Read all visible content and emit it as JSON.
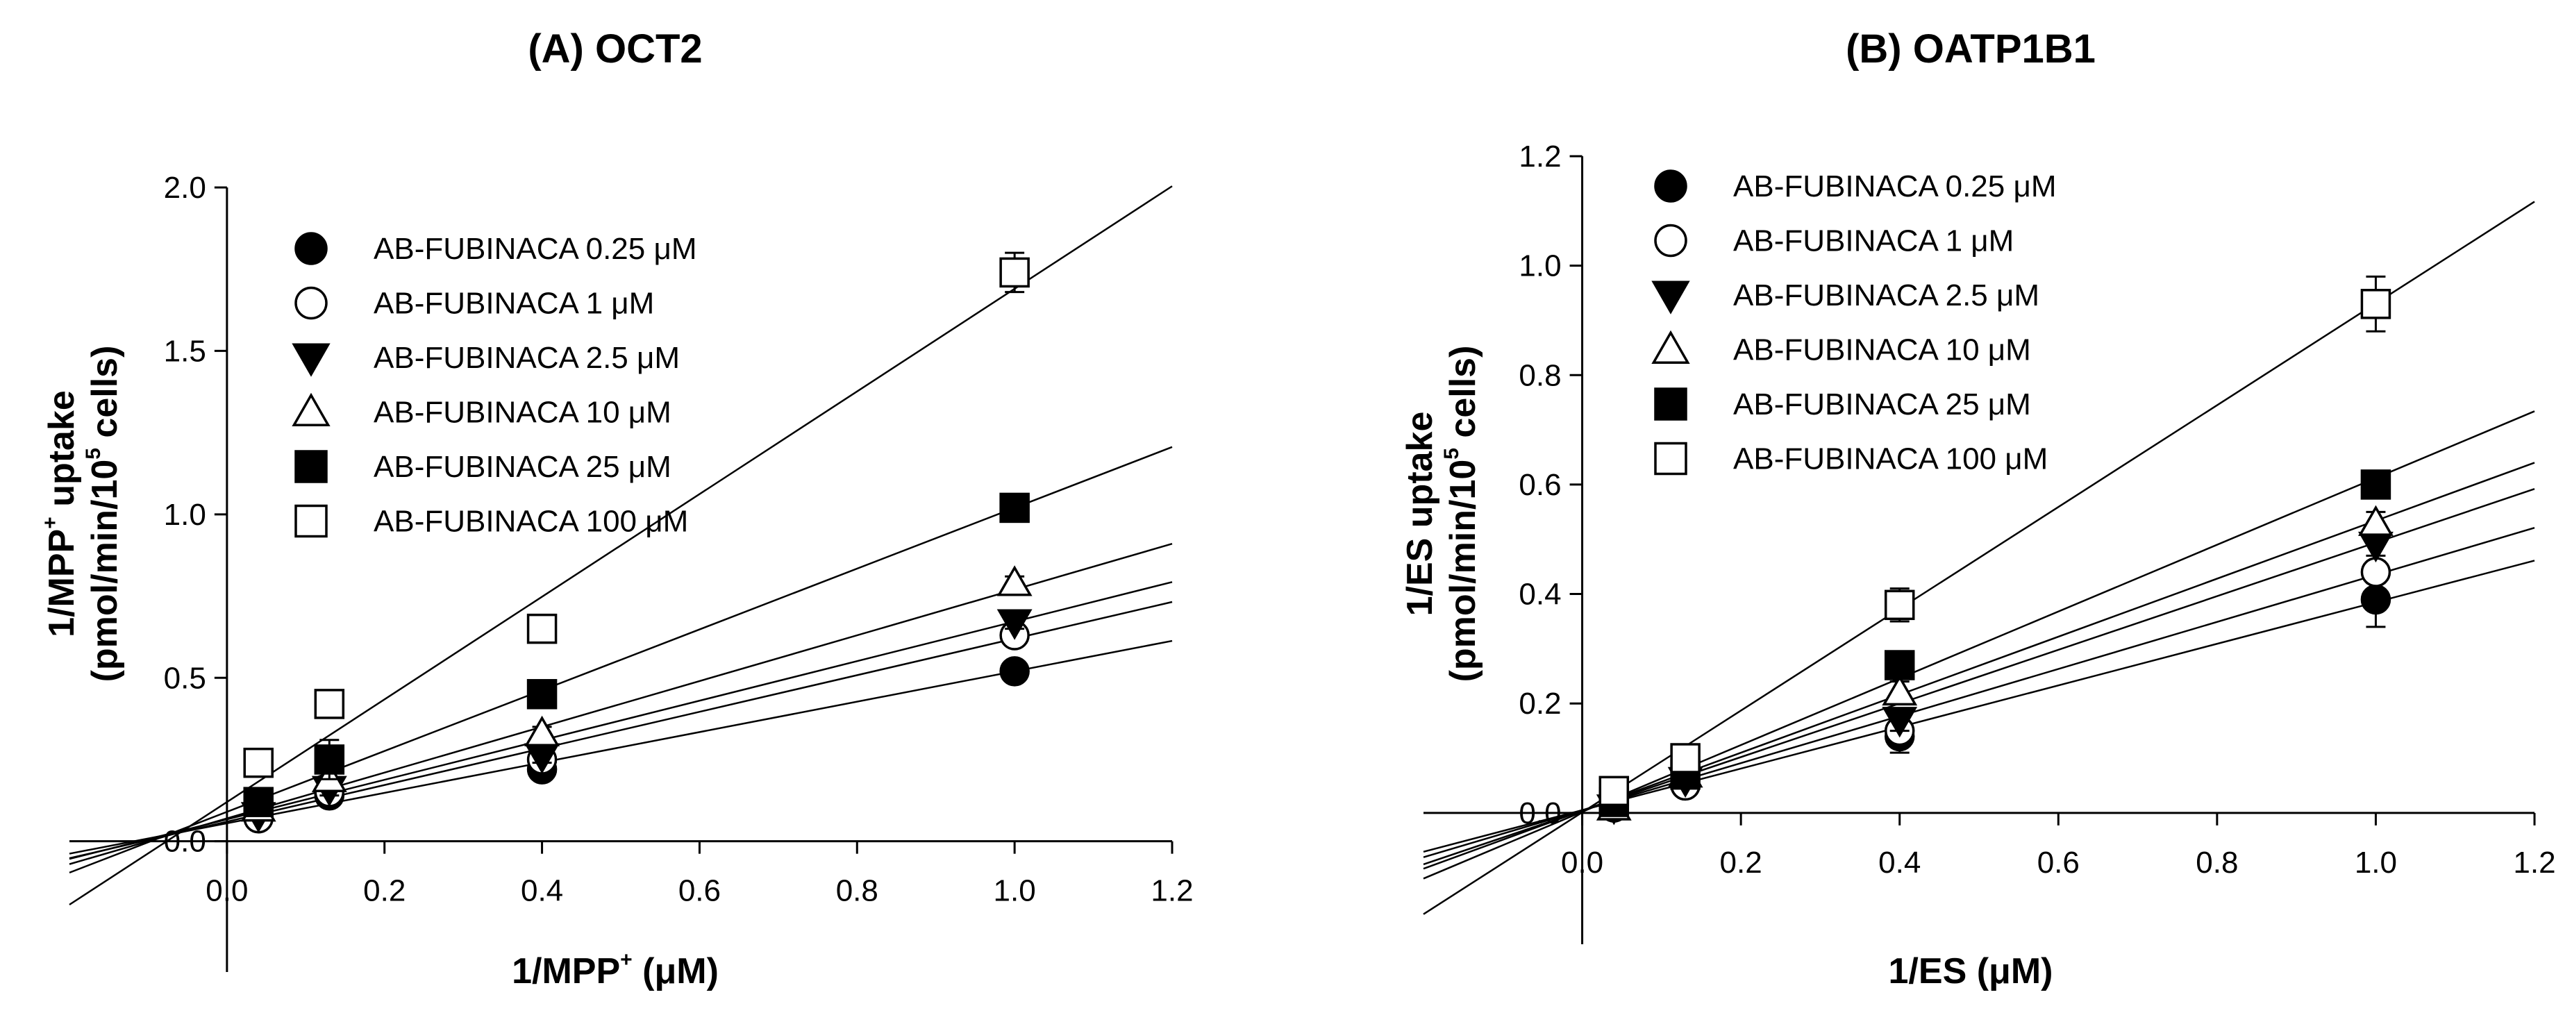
{
  "chart_data": [
    {
      "type": "scatter",
      "panel_title": "(A) OCT2",
      "xlabel": "1/MPP+ (μM)",
      "xlabel_parts": {
        "pre": "1/MPP",
        "sup": "+",
        "post": " (μM)"
      },
      "ylabel": "1/MPP+ uptake (pmol/min/10^5 cells)",
      "ylabel_line1": {
        "pre": "1/MPP",
        "sup": "+",
        "post": " uptake"
      },
      "ylabel_line2": {
        "pre": "(pmol/min/10",
        "sup": "5",
        "post": " cells)"
      },
      "xlim": [
        -0.2,
        1.2
      ],
      "ylim": [
        -0.4,
        2.0
      ],
      "xticks": [
        0.0,
        0.2,
        0.4,
        0.6,
        0.8,
        1.0,
        1.2
      ],
      "xtick_labels": [
        "0.0",
        "0.2",
        "0.4",
        "0.6",
        "0.8",
        "1.0",
        "1.2"
      ],
      "yticks": [
        0.0,
        0.5,
        1.0,
        1.5,
        2.0
      ],
      "ytick_labels": [
        "0.0",
        "0.5",
        "1.0",
        "1.5",
        "2.0"
      ],
      "legend_position": "top-left",
      "series": [
        {
          "name": "AB-FUBINACA 0.25 μM",
          "marker": "filled-circle",
          "x": [
            0.04,
            0.13,
            0.4,
            1.0
          ],
          "y": [
            0.08,
            0.14,
            0.22,
            0.52
          ],
          "err": [
            0.01,
            0.02,
            0.02,
            0.02
          ],
          "fit": [
            0.465,
            0.055
          ]
        },
        {
          "name": "AB-FUBINACA 1 μM",
          "marker": "open-circle",
          "x": [
            0.04,
            0.13,
            0.4,
            1.0
          ],
          "y": [
            0.07,
            0.15,
            0.25,
            0.63
          ],
          "err": [
            0.01,
            0.02,
            0.02,
            0.02
          ],
          "fit": [
            0.56,
            0.06
          ]
        },
        {
          "name": "AB-FUBINACA 2.5 μM",
          "marker": "filled-triangle-down",
          "x": [
            0.04,
            0.13,
            0.4,
            1.0
          ],
          "y": [
            0.08,
            0.16,
            0.26,
            0.67
          ],
          "err": [
            0.01,
            0.02,
            0.02,
            0.02
          ],
          "fit": [
            0.605,
            0.067
          ]
        },
        {
          "name": "AB-FUBINACA 10 μM",
          "marker": "open-triangle-up",
          "x": [
            0.04,
            0.13,
            0.4,
            1.0
          ],
          "y": [
            0.1,
            0.19,
            0.33,
            0.79
          ],
          "err": [
            0.01,
            0.02,
            0.02,
            0.02
          ],
          "fit": [
            0.7,
            0.07
          ]
        },
        {
          "name": "AB-FUBINACA 25 μM",
          "marker": "filled-square",
          "x": [
            0.04,
            0.13,
            0.4,
            1.0
          ],
          "y": [
            0.12,
            0.25,
            0.45,
            1.02
          ],
          "err": [
            0.01,
            0.06,
            0.02,
            0.02
          ],
          "fit": [
            0.93,
            0.09
          ]
        },
        {
          "name": "AB-FUBINACA 100 μM",
          "marker": "open-square",
          "x": [
            0.04,
            0.13,
            0.4,
            1.0
          ],
          "y": [
            0.24,
            0.42,
            0.65,
            1.74
          ],
          "err": [
            0.01,
            0.02,
            0.02,
            0.06
          ],
          "fit": [
            1.57,
            0.12
          ]
        }
      ]
    },
    {
      "type": "scatter",
      "panel_title": "(B) OATP1B1",
      "xlabel": "1/ES (μM)",
      "xlabel_parts": {
        "pre": "1/ES (μM)",
        "sup": "",
        "post": ""
      },
      "ylabel": "1/ES uptake (pmol/min/10^5 cells)",
      "ylabel_line1": {
        "pre": "1/ES uptake",
        "sup": "",
        "post": ""
      },
      "ylabel_line2": {
        "pre": "(pmol/min/10",
        "sup": "5",
        "post": " cells)"
      },
      "xlim": [
        -0.2,
        1.2
      ],
      "ylim": [
        -0.24,
        1.2
      ],
      "xticks": [
        0.0,
        0.2,
        0.4,
        0.6,
        0.8,
        1.0,
        1.2
      ],
      "xtick_labels": [
        "0.0",
        "0.2",
        "0.4",
        "0.6",
        "0.8",
        "1.0",
        "1.2"
      ],
      "yticks": [
        0.0,
        0.2,
        0.4,
        0.6,
        0.8,
        1.0,
        1.2
      ],
      "ytick_labels": [
        "0.0",
        "0.2",
        "0.4",
        "0.6",
        "0.8",
        "1.0",
        "1.2"
      ],
      "legend_position": "top-left",
      "series": [
        {
          "name": "AB-FUBINACA 0.25 μM",
          "marker": "filled-circle",
          "x": [
            0.04,
            0.13,
            0.4,
            1.0
          ],
          "y": [
            0.01,
            0.05,
            0.14,
            0.39
          ],
          "err": [
            0.005,
            0.01,
            0.03,
            0.05
          ],
          "fit": [
            0.38,
            0.005
          ]
        },
        {
          "name": "AB-FUBINACA 1 μM",
          "marker": "open-circle",
          "x": [
            0.04,
            0.13,
            0.4,
            1.0
          ],
          "y": [
            0.01,
            0.05,
            0.15,
            0.44
          ],
          "err": [
            0.005,
            0.01,
            0.02,
            0.02
          ],
          "fit": [
            0.43,
            0.005
          ]
        },
        {
          "name": "AB-FUBINACA 2.5 μM",
          "marker": "filled-triangle-down",
          "x": [
            0.04,
            0.13,
            0.4,
            1.0
          ],
          "y": [
            0.01,
            0.06,
            0.17,
            0.49
          ],
          "err": [
            0.005,
            0.01,
            0.02,
            0.02
          ],
          "fit": [
            0.49,
            0.004
          ]
        },
        {
          "name": "AB-FUBINACA 10 μM",
          "marker": "open-triangle-up",
          "x": [
            0.04,
            0.13,
            0.4,
            1.0
          ],
          "y": [
            0.01,
            0.07,
            0.22,
            0.53
          ],
          "err": [
            0.005,
            0.01,
            0.02,
            0.02
          ],
          "fit": [
            0.53,
            0.004
          ]
        },
        {
          "name": "AB-FUBINACA 25 μM",
          "marker": "filled-square",
          "x": [
            0.04,
            0.13,
            0.4,
            1.0
          ],
          "y": [
            0.02,
            0.07,
            0.27,
            0.6
          ],
          "err": [
            0.005,
            0.01,
            0.02,
            0.02
          ],
          "fit": [
            0.61,
            0.002
          ]
        },
        {
          "name": "AB-FUBINACA 100 μM",
          "marker": "open-square",
          "x": [
            0.04,
            0.13,
            0.4,
            1.0
          ],
          "y": [
            0.04,
            0.1,
            0.38,
            0.93
          ],
          "err": [
            0.005,
            0.01,
            0.03,
            0.05
          ],
          "fit": [
            0.93,
            0.001
          ]
        }
      ]
    }
  ]
}
